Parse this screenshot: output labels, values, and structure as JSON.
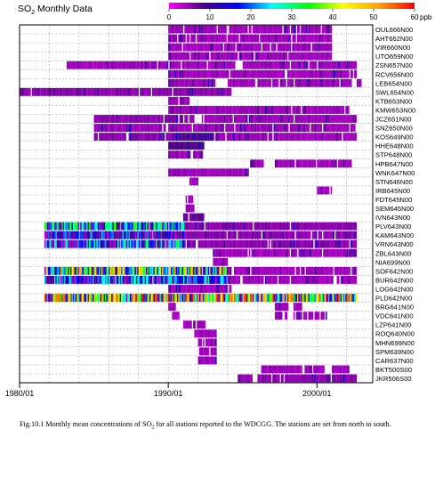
{
  "chart_data": {
    "type": "heatmap",
    "title": "SO2 Monthly Data",
    "colorbar": {
      "unit": "ppb",
      "ticks": [
        0,
        10,
        20,
        30,
        40,
        50,
        60
      ],
      "colors": [
        "#ff00ff",
        "#4b0082",
        "#0000ff",
        "#00ffff",
        "#00ff00",
        "#ffff00",
        "#ffa500",
        "#ff0000"
      ]
    },
    "x_axis": {
      "range": [
        "1980/01",
        "2003/10"
      ],
      "tick_labels": [
        "1980/01",
        "1990/01",
        "2000/01"
      ]
    },
    "stations": [
      "OUL666N00",
      "AHT662N00",
      "VIR660N00",
      "UTO659N00",
      "ZSN657N00",
      "RCV656N00",
      "LEB654N00",
      "SWL654N00",
      "KTB653N00",
      "KMW653N00",
      "JCZ651N00",
      "SNZ650N00",
      "KOS649N00",
      "HHE648N00",
      "STP648N00",
      "HPB647N00",
      "WNK647N00",
      "STN646N00",
      "IRB645N00",
      "FDT645N00",
      "SEM645N00",
      "IVN643N00",
      "PLV643N00",
      "KAM643N00",
      "VRN643N00",
      "ZBL643N00",
      "NIA699N00",
      "SOF642N00",
      "BUR642N00",
      "LOG642N00",
      "PLD642N00",
      "BRG641N00",
      "VDC641N00",
      "LZP641N00",
      "ROQ640N00",
      "MHN699N00",
      "SPM639N00",
      "CAR637N00",
      "BKT500S00",
      "JKR506S00"
    ],
    "segments": [
      {
        "station": "OUL666N00",
        "start": "1990/01",
        "end": "2001/01",
        "level": 5
      },
      {
        "station": "AHT662N00",
        "start": "1990/01",
        "end": "2001/01",
        "level": 5
      },
      {
        "station": "VIR660N00",
        "start": "1990/01",
        "end": "2001/01",
        "level": 5
      },
      {
        "station": "UTO659N00",
        "start": "1990/01",
        "end": "2001/01",
        "level": 5
      },
      {
        "station": "ZSN657N00",
        "start": "1983/03",
        "end": "1994/07",
        "level": 5
      },
      {
        "station": "ZSN657N00",
        "start": "1995/01",
        "end": "2002/09",
        "level": 5
      },
      {
        "station": "RCV656N00",
        "start": "1990/01",
        "end": "2002/09",
        "level": 5
      },
      {
        "station": "LEB654N00",
        "start": "1990/01",
        "end": "1993/04",
        "level": 5
      },
      {
        "station": "LEB654N00",
        "start": "1994/01",
        "end": "2002/05",
        "level": 5
      },
      {
        "station": "LEB654N00",
        "start": "2002/09",
        "end": "2003/01",
        "level": 5
      },
      {
        "station": "SWL654N00",
        "start": "1980/01",
        "end": "1994/04",
        "level": 6
      },
      {
        "station": "KTB653N00",
        "start": "1990/01",
        "end": "1991/06",
        "level": 5
      },
      {
        "station": "KMW653N00",
        "start": "1990/01",
        "end": "2002/03",
        "level": 5
      },
      {
        "station": "JCZ651N00",
        "start": "1985/01",
        "end": "1991/10",
        "level": 6
      },
      {
        "station": "JCZ651N00",
        "start": "1992/04",
        "end": "2002/09",
        "level": 5
      },
      {
        "station": "SNZ650N00",
        "start": "1985/01",
        "end": "2002/09",
        "level": 5
      },
      {
        "station": "KOS649N00",
        "start": "1985/01",
        "end": "1990/07",
        "level": 6
      },
      {
        "station": "KOS649N00",
        "start": "1990/07",
        "end": "1993/01",
        "level": 10
      },
      {
        "station": "KOS649N00",
        "start": "1993/01",
        "end": "2002/09",
        "level": 5
      },
      {
        "station": "HHE648N00",
        "start": "1990/01",
        "end": "1992/06",
        "level": 10
      },
      {
        "station": "STP648N00",
        "start": "1990/01",
        "end": "1992/05",
        "level": 5
      },
      {
        "station": "HPB647N00",
        "start": "1995/07",
        "end": "1996/06",
        "level": 5
      },
      {
        "station": "HPB647N00",
        "start": "1997/03",
        "end": "2002/05",
        "level": 5
      },
      {
        "station": "WNK647N00",
        "start": "1990/01",
        "end": "1995/06",
        "level": 5
      },
      {
        "station": "STN646N00",
        "start": "1991/06",
        "end": "1992/01",
        "level": 5
      },
      {
        "station": "IRB645N00",
        "start": "2000/01",
        "end": "2001/01",
        "level": 5
      },
      {
        "station": "FDT645N00",
        "start": "1991/03",
        "end": "1991/09",
        "level": 5
      },
      {
        "station": "SEM645N00",
        "start": "1991/03",
        "end": "1991/10",
        "level": 5
      },
      {
        "station": "IVN643N00",
        "start": "1991/01",
        "end": "1992/06",
        "level": 8
      },
      {
        "station": "PLV643N00",
        "start": "1981/09",
        "end": "1991/02",
        "level": 22
      },
      {
        "station": "PLV643N00",
        "start": "1991/02",
        "end": "2002/09",
        "level": 6
      },
      {
        "station": "KAM643N00",
        "start": "1981/09",
        "end": "1991/02",
        "level": 14
      },
      {
        "station": "KAM643N00",
        "start": "1991/02",
        "end": "2002/09",
        "level": 6
      },
      {
        "station": "VRN643N00",
        "start": "1981/09",
        "end": "1991/02",
        "level": 18
      },
      {
        "station": "VRN643N00",
        "start": "1991/02",
        "end": "2002/09",
        "level": 6
      },
      {
        "station": "ZBL643N00",
        "start": "1993/01",
        "end": "2002/09",
        "level": 5
      },
      {
        "station": "NIA699N00",
        "start": "1993/01",
        "end": "1994/01",
        "level": 5
      },
      {
        "station": "SOF642N00",
        "start": "1981/09",
        "end": "1994/01",
        "level": 30
      },
      {
        "station": "SOF642N00",
        "start": "1994/01",
        "end": "2002/09",
        "level": 5
      },
      {
        "station": "BUR642N00",
        "start": "1981/09",
        "end": "1994/01",
        "level": 16
      },
      {
        "station": "BUR642N00",
        "start": "1994/01",
        "end": "2002/09",
        "level": 5
      },
      {
        "station": "LOG642N00",
        "start": "1990/01",
        "end": "1994/04",
        "level": 5
      },
      {
        "station": "PLD642N00",
        "start": "1981/09",
        "end": "2002/09",
        "level": 35
      },
      {
        "station": "BRG641N00",
        "start": "1990/01",
        "end": "1990/07",
        "level": 5
      },
      {
        "station": "BRG641N00",
        "start": "1997/03",
        "end": "1998/02",
        "level": 5
      },
      {
        "station": "BRG641N00",
        "start": "1998/06",
        "end": "1999/01",
        "level": 5
      },
      {
        "station": "VDC641N00",
        "start": "1990/04",
        "end": "1990/10",
        "level": 5
      },
      {
        "station": "VDC641N00",
        "start": "1997/03",
        "end": "1998/01",
        "level": 5
      },
      {
        "station": "VDC641N00",
        "start": "1998/06",
        "end": "2000/09",
        "level": 5
      },
      {
        "station": "LZP641N00",
        "start": "1991/01",
        "end": "1992/07",
        "level": 5
      },
      {
        "station": "ROQ640N00",
        "start": "1991/10",
        "end": "1993/04",
        "level": 5
      },
      {
        "station": "MHN699N00",
        "start": "1992/01",
        "end": "1993/04",
        "level": 5
      },
      {
        "station": "SPM639N00",
        "start": "1992/01",
        "end": "1993/04",
        "level": 5
      },
      {
        "station": "CAR637N00",
        "start": "1992/01",
        "end": "1993/04",
        "level": 5
      },
      {
        "station": "BKT500S00",
        "start": "1996/04",
        "end": "1999/01",
        "level": 5
      },
      {
        "station": "BKT500S00",
        "start": "1999/03",
        "end": "2000/07",
        "level": 5
      },
      {
        "station": "BKT500S00",
        "start": "2001/01",
        "end": "2002/03",
        "level": 5
      },
      {
        "station": "JKR506S00",
        "start": "1994/09",
        "end": "1995/09",
        "level": 5
      },
      {
        "station": "JKR506S00",
        "start": "1996/01",
        "end": "2002/09",
        "level": 6
      }
    ]
  },
  "caption": {
    "pre": "Fig.10.1  Monthly mean concentrations of SO",
    "sub": "2",
    "post": " for all stations reported to the WDCGG.  The stations are set from north to south."
  }
}
